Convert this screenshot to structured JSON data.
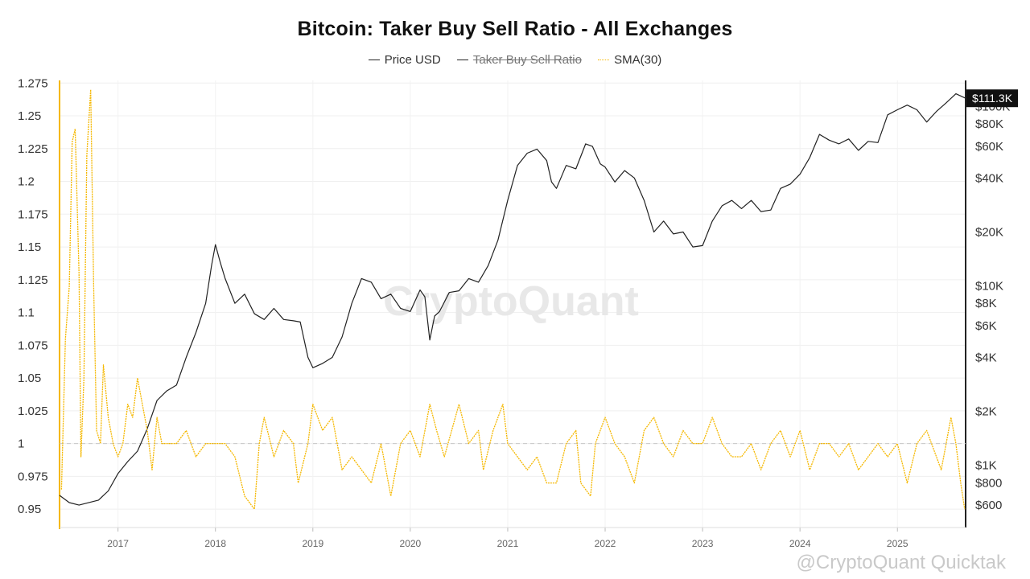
{
  "chart_data": {
    "type": "line",
    "title": "Bitcoin: Taker Buy Sell Ratio - All Exchanges",
    "legend": [
      {
        "name": "Price USD",
        "color": "#222222",
        "visible": true
      },
      {
        "name": "Taker Buy Sell Ratio",
        "color": "#555555",
        "visible": false
      },
      {
        "name": "SMA(30)",
        "color": "#f5b800",
        "visible": true
      }
    ],
    "legend_placement": "top-center",
    "left_axis": {
      "ticks": [
        "1.275",
        "1.25",
        "1.225",
        "1.2",
        "1.175",
        "1.15",
        "1.125",
        "1.1",
        "1.075",
        "1.05",
        "1.025",
        "1",
        "0.975",
        "0.95"
      ],
      "range": [
        0.936,
        1.277
      ]
    },
    "right_axis": {
      "scale": "log",
      "ticks": [
        "$100K",
        "$80K",
        "$60K",
        "$40K",
        "$20K",
        "$10K",
        "$8K",
        "$6K",
        "$4K",
        "$2K",
        "$1K",
        "$800",
        "$600"
      ],
      "current_price_label": "$111.3K"
    },
    "x_axis": {
      "ticks": [
        "2017",
        "2018",
        "2019",
        "2020",
        "2021",
        "2022",
        "2023",
        "2024",
        "2025"
      ],
      "range": [
        2016.4,
        2025.7
      ]
    },
    "reference_line": {
      "y": 1,
      "style": "dashed"
    },
    "grid": true,
    "series": [
      {
        "name": "Price USD",
        "axis": "right",
        "x": [
          2016.4,
          2016.5,
          2016.6,
          2016.8,
          2016.9,
          2017.0,
          2017.1,
          2017.2,
          2017.3,
          2017.4,
          2017.5,
          2017.6,
          2017.7,
          2017.8,
          2017.9,
          2017.96,
          2018.0,
          2018.05,
          2018.1,
          2018.2,
          2018.3,
          2018.4,
          2018.5,
          2018.6,
          2018.7,
          2018.8,
          2018.87,
          2018.95,
          2019.0,
          2019.1,
          2019.2,
          2019.3,
          2019.4,
          2019.5,
          2019.6,
          2019.7,
          2019.8,
          2019.9,
          2020.0,
          2020.1,
          2020.15,
          2020.2,
          2020.25,
          2020.3,
          2020.4,
          2020.5,
          2020.6,
          2020.7,
          2020.8,
          2020.9,
          2021.0,
          2021.1,
          2021.2,
          2021.3,
          2021.4,
          2021.45,
          2021.5,
          2021.6,
          2021.7,
          2021.8,
          2021.87,
          2021.95,
          2022.0,
          2022.1,
          2022.2,
          2022.3,
          2022.4,
          2022.5,
          2022.6,
          2022.7,
          2022.8,
          2022.9,
          2023.0,
          2023.1,
          2023.2,
          2023.3,
          2023.4,
          2023.5,
          2023.6,
          2023.7,
          2023.8,
          2023.9,
          2024.0,
          2024.1,
          2024.2,
          2024.3,
          2024.4,
          2024.5,
          2024.6,
          2024.7,
          2024.8,
          2024.9,
          2025.0,
          2025.1,
          2025.2,
          2025.3,
          2025.4,
          2025.5,
          2025.6,
          2025.7
        ],
        "y": [
          680,
          620,
          600,
          640,
          720,
          900,
          1050,
          1200,
          1600,
          2300,
          2600,
          2800,
          4000,
          5500,
          8000,
          13000,
          17000,
          13500,
          11000,
          8000,
          9000,
          7000,
          6500,
          7500,
          6500,
          6400,
          6300,
          4000,
          3500,
          3700,
          4000,
          5200,
          8000,
          11000,
          10500,
          8500,
          9000,
          7500,
          7200,
          9500,
          8700,
          5000,
          6800,
          7200,
          9200,
          9400,
          11000,
          10500,
          13000,
          18000,
          30000,
          47000,
          55000,
          58000,
          50000,
          38000,
          35000,
          47000,
          45000,
          62000,
          60000,
          48000,
          46000,
          38000,
          44000,
          40000,
          30000,
          20000,
          23000,
          19500,
          20000,
          16500,
          16800,
          23000,
          28000,
          30000,
          27000,
          30000,
          26000,
          26500,
          35000,
          37000,
          42000,
          52000,
          70000,
          65000,
          62000,
          66000,
          57000,
          64000,
          63000,
          90000,
          96000,
          102000,
          96000,
          82000,
          94000,
          105000,
          118000,
          111300
        ]
      },
      {
        "name": "SMA(30)",
        "axis": "left",
        "x": [
          2016.42,
          2016.46,
          2016.5,
          2016.53,
          2016.56,
          2016.6,
          2016.62,
          2016.65,
          2016.68,
          2016.72,
          2016.75,
          2016.78,
          2016.82,
          2016.85,
          2016.9,
          2016.95,
          2017.0,
          2017.05,
          2017.1,
          2017.15,
          2017.2,
          2017.25,
          2017.3,
          2017.35,
          2017.4,
          2017.45,
          2017.5,
          2017.6,
          2017.7,
          2017.8,
          2017.9,
          2018.0,
          2018.1,
          2018.2,
          2018.3,
          2018.4,
          2018.45,
          2018.5,
          2018.6,
          2018.7,
          2018.8,
          2018.85,
          2018.95,
          2019.0,
          2019.1,
          2019.2,
          2019.3,
          2019.4,
          2019.5,
          2019.6,
          2019.7,
          2019.8,
          2019.9,
          2020.0,
          2020.1,
          2020.2,
          2020.27,
          2020.35,
          2020.5,
          2020.6,
          2020.7,
          2020.75,
          2020.85,
          2020.95,
          2021.0,
          2021.1,
          2021.2,
          2021.3,
          2021.4,
          2021.5,
          2021.6,
          2021.7,
          2021.75,
          2021.85,
          2021.9,
          2022.0,
          2022.1,
          2022.2,
          2022.3,
          2022.4,
          2022.5,
          2022.6,
          2022.7,
          2022.8,
          2022.9,
          2023.0,
          2023.1,
          2023.2,
          2023.3,
          2023.4,
          2023.5,
          2023.6,
          2023.7,
          2023.8,
          2023.9,
          2024.0,
          2024.1,
          2024.2,
          2024.3,
          2024.4,
          2024.5,
          2024.6,
          2024.7,
          2024.8,
          2024.9,
          2025.0,
          2025.1,
          2025.2,
          2025.3,
          2025.4,
          2025.45,
          2025.5,
          2025.55,
          2025.6,
          2025.65,
          2025.69
        ],
        "y": [
          0.965,
          1.08,
          1.12,
          1.23,
          1.24,
          1.13,
          0.99,
          1.05,
          1.22,
          1.27,
          1.12,
          1.01,
          1.0,
          1.06,
          1.02,
          1.0,
          0.99,
          1.0,
          1.03,
          1.02,
          1.05,
          1.03,
          1.01,
          0.98,
          1.02,
          1.0,
          1.0,
          1.0,
          1.01,
          0.99,
          1.0,
          1.0,
          1.0,
          0.99,
          0.96,
          0.95,
          1.0,
          1.02,
          0.99,
          1.01,
          1.0,
          0.97,
          1.0,
          1.03,
          1.01,
          1.02,
          0.98,
          0.99,
          0.98,
          0.97,
          1.0,
          0.96,
          1.0,
          1.01,
          0.99,
          1.03,
          1.01,
          0.99,
          1.03,
          1.0,
          1.01,
          0.98,
          1.01,
          1.03,
          1.0,
          0.99,
          0.98,
          0.99,
          0.97,
          0.97,
          1.0,
          1.01,
          0.97,
          0.96,
          1.0,
          1.02,
          1.0,
          0.99,
          0.97,
          1.01,
          1.02,
          1.0,
          0.99,
          1.01,
          1.0,
          1.0,
          1.02,
          1.0,
          0.99,
          0.99,
          1.0,
          0.98,
          1.0,
          1.01,
          0.99,
          1.01,
          0.98,
          1.0,
          1.0,
          0.99,
          1.0,
          0.98,
          0.99,
          1.0,
          0.99,
          1.0,
          0.97,
          1.0,
          1.01,
          0.99,
          0.98,
          1.0,
          1.02,
          1.0,
          0.97,
          0.95
        ]
      }
    ]
  },
  "watermark": "CryptoQuant",
  "footer_watermark": "@CryptoQuant Quicktak"
}
